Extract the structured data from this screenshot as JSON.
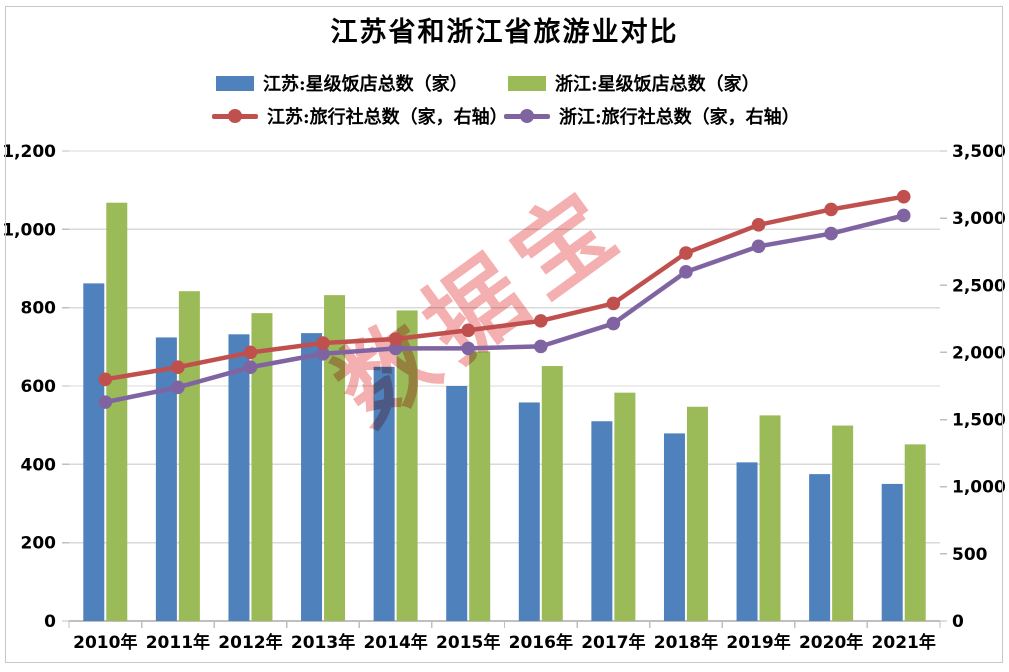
{
  "title": "江苏省和浙江省旅游业对比",
  "watermark": "数据宝",
  "legend": [
    {
      "label": "江苏:星级饭店总数（家）",
      "type": "bar",
      "color": "#4F81BD"
    },
    {
      "label": "浙江:星级饭店总数（家）",
      "type": "bar",
      "color": "#9BBB59"
    },
    {
      "label": "江苏:旅行社总数（家，右轴）",
      "type": "line",
      "color": "#C0504D"
    },
    {
      "label": "浙江:旅行社总数（家，右轴）",
      "type": "line",
      "color": "#8064A2"
    }
  ],
  "chart_data": {
    "type": "combo",
    "title": "江苏省和浙江省旅游业对比",
    "categories": [
      "2010年",
      "2011年",
      "2012年",
      "2013年",
      "2014年",
      "2015年",
      "2016年",
      "2017年",
      "2018年",
      "2019年",
      "2020年",
      "2021年"
    ],
    "series": [
      {
        "name": "江苏:星级饭店总数（家）",
        "type": "bar",
        "axis": "left",
        "color": "#4F81BD",
        "values": [
          862,
          724,
          732,
          735,
          649,
          600,
          558,
          510,
          479,
          405,
          375,
          350
        ]
      },
      {
        "name": "浙江:星级饭店总数（家）",
        "type": "bar",
        "axis": "left",
        "color": "#9BBB59",
        "values": [
          1068,
          842,
          786,
          832,
          793,
          688,
          651,
          583,
          547,
          525,
          499,
          451
        ]
      },
      {
        "name": "江苏:旅行社总数（家，右轴）",
        "type": "line",
        "axis": "right",
        "color": "#C0504D",
        "values": [
          1800,
          1890,
          2000,
          2070,
          2100,
          2165,
          2235,
          2365,
          2740,
          2950,
          3065,
          3160
        ]
      },
      {
        "name": "浙江:旅行社总数（家，右轴）",
        "type": "line",
        "axis": "right",
        "color": "#8064A2",
        "values": [
          1630,
          1740,
          1890,
          1990,
          2030,
          2030,
          2045,
          2215,
          2600,
          2790,
          2885,
          3020
        ]
      }
    ],
    "left_axis": {
      "min": 0,
      "max": 1200,
      "step": 200,
      "tick_labels": [
        "0",
        "200",
        "400",
        "600",
        "800",
        "1,000",
        "1,200"
      ]
    },
    "right_axis": {
      "min": 0,
      "max": 3500,
      "step": 500,
      "tick_labels": [
        "0",
        "500",
        "1,000",
        "1,500",
        "2,000",
        "2,500",
        "3,000",
        "3,500"
      ]
    },
    "grid": true,
    "legend_position": "top"
  }
}
